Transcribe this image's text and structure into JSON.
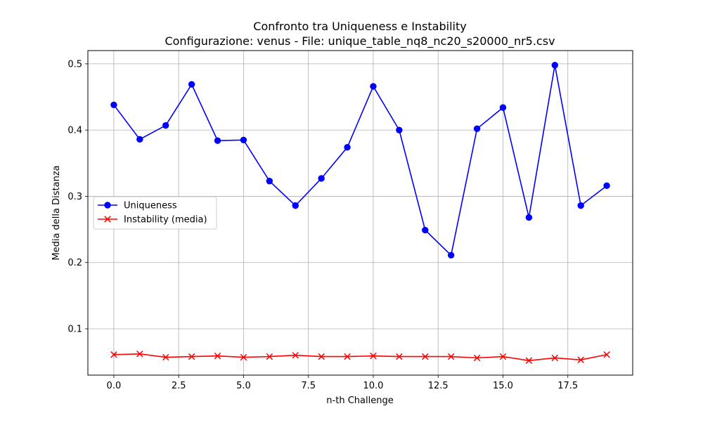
{
  "chart_data": {
    "type": "line",
    "title": "Confronto tra Uniqueness e Instability",
    "subtitle": "Configurazione: venus - File: unique_table_nq8_nc20_s20000_nr5.csv",
    "xlabel": "n-th Challenge",
    "ylabel": "Media della Distanza",
    "xlim": [
      -1,
      20
    ],
    "ylim": [
      0.03,
      0.52
    ],
    "xticks": [
      0.0,
      2.5,
      5.0,
      7.5,
      10.0,
      12.5,
      15.0,
      17.5
    ],
    "xtick_labels": [
      "0.0",
      "2.5",
      "5.0",
      "7.5",
      "10.0",
      "12.5",
      "15.0",
      "17.5"
    ],
    "yticks": [
      0.1,
      0.2,
      0.3,
      0.4,
      0.5
    ],
    "ytick_labels": [
      "0.1",
      "0.2",
      "0.3",
      "0.4",
      "0.5"
    ],
    "grid": true,
    "legend_position": "center-left",
    "x": [
      0,
      1,
      2,
      3,
      4,
      5,
      6,
      7,
      8,
      9,
      10,
      11,
      12,
      13,
      14,
      15,
      16,
      17,
      18,
      19
    ],
    "series": [
      {
        "name": "Uniqueness",
        "color": "#0000ff",
        "marker": "circle",
        "values": [
          0.438,
          0.386,
          0.407,
          0.469,
          0.384,
          0.385,
          0.323,
          0.286,
          0.327,
          0.374,
          0.466,
          0.4,
          0.249,
          0.211,
          0.402,
          0.434,
          0.268,
          0.498,
          0.286,
          0.316
        ]
      },
      {
        "name": "Instability (media)",
        "color": "#ff0000",
        "marker": "x",
        "values": [
          0.061,
          0.062,
          0.057,
          0.058,
          0.059,
          0.057,
          0.058,
          0.06,
          0.058,
          0.058,
          0.059,
          0.058,
          0.058,
          0.058,
          0.056,
          0.058,
          0.052,
          0.056,
          0.053,
          0.061
        ]
      }
    ]
  }
}
